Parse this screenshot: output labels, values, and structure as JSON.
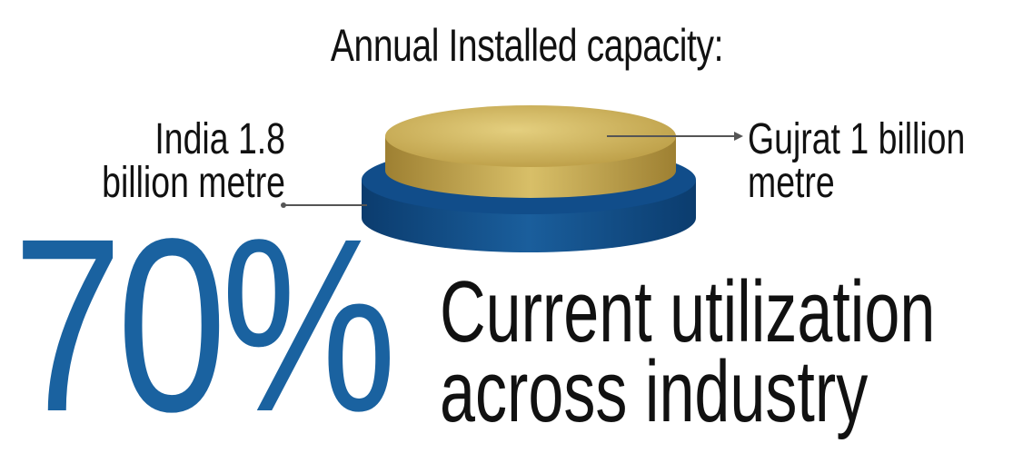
{
  "chart_data": {
    "type": "pie",
    "title": "Annual Installed capacity:",
    "unit": "metre",
    "series": [
      {
        "name": "India",
        "value": 1.8,
        "label": "India 1.8 billion metre",
        "color": "#0f4a86"
      },
      {
        "name": "Gujrat",
        "value": 1.0,
        "label": "Gujrat 1 billion metre",
        "color": "#c9ad52"
      }
    ]
  },
  "labels": {
    "india_line1": "India 1.8",
    "india_line2": "billion metre",
    "gujrat_line1": "Gujrat 1 billion",
    "gujrat_line2": "metre"
  },
  "highlight": {
    "value": "70%",
    "caption_line1": "Current utilization",
    "caption_line2": "across industry",
    "color": "#1a62a0"
  }
}
